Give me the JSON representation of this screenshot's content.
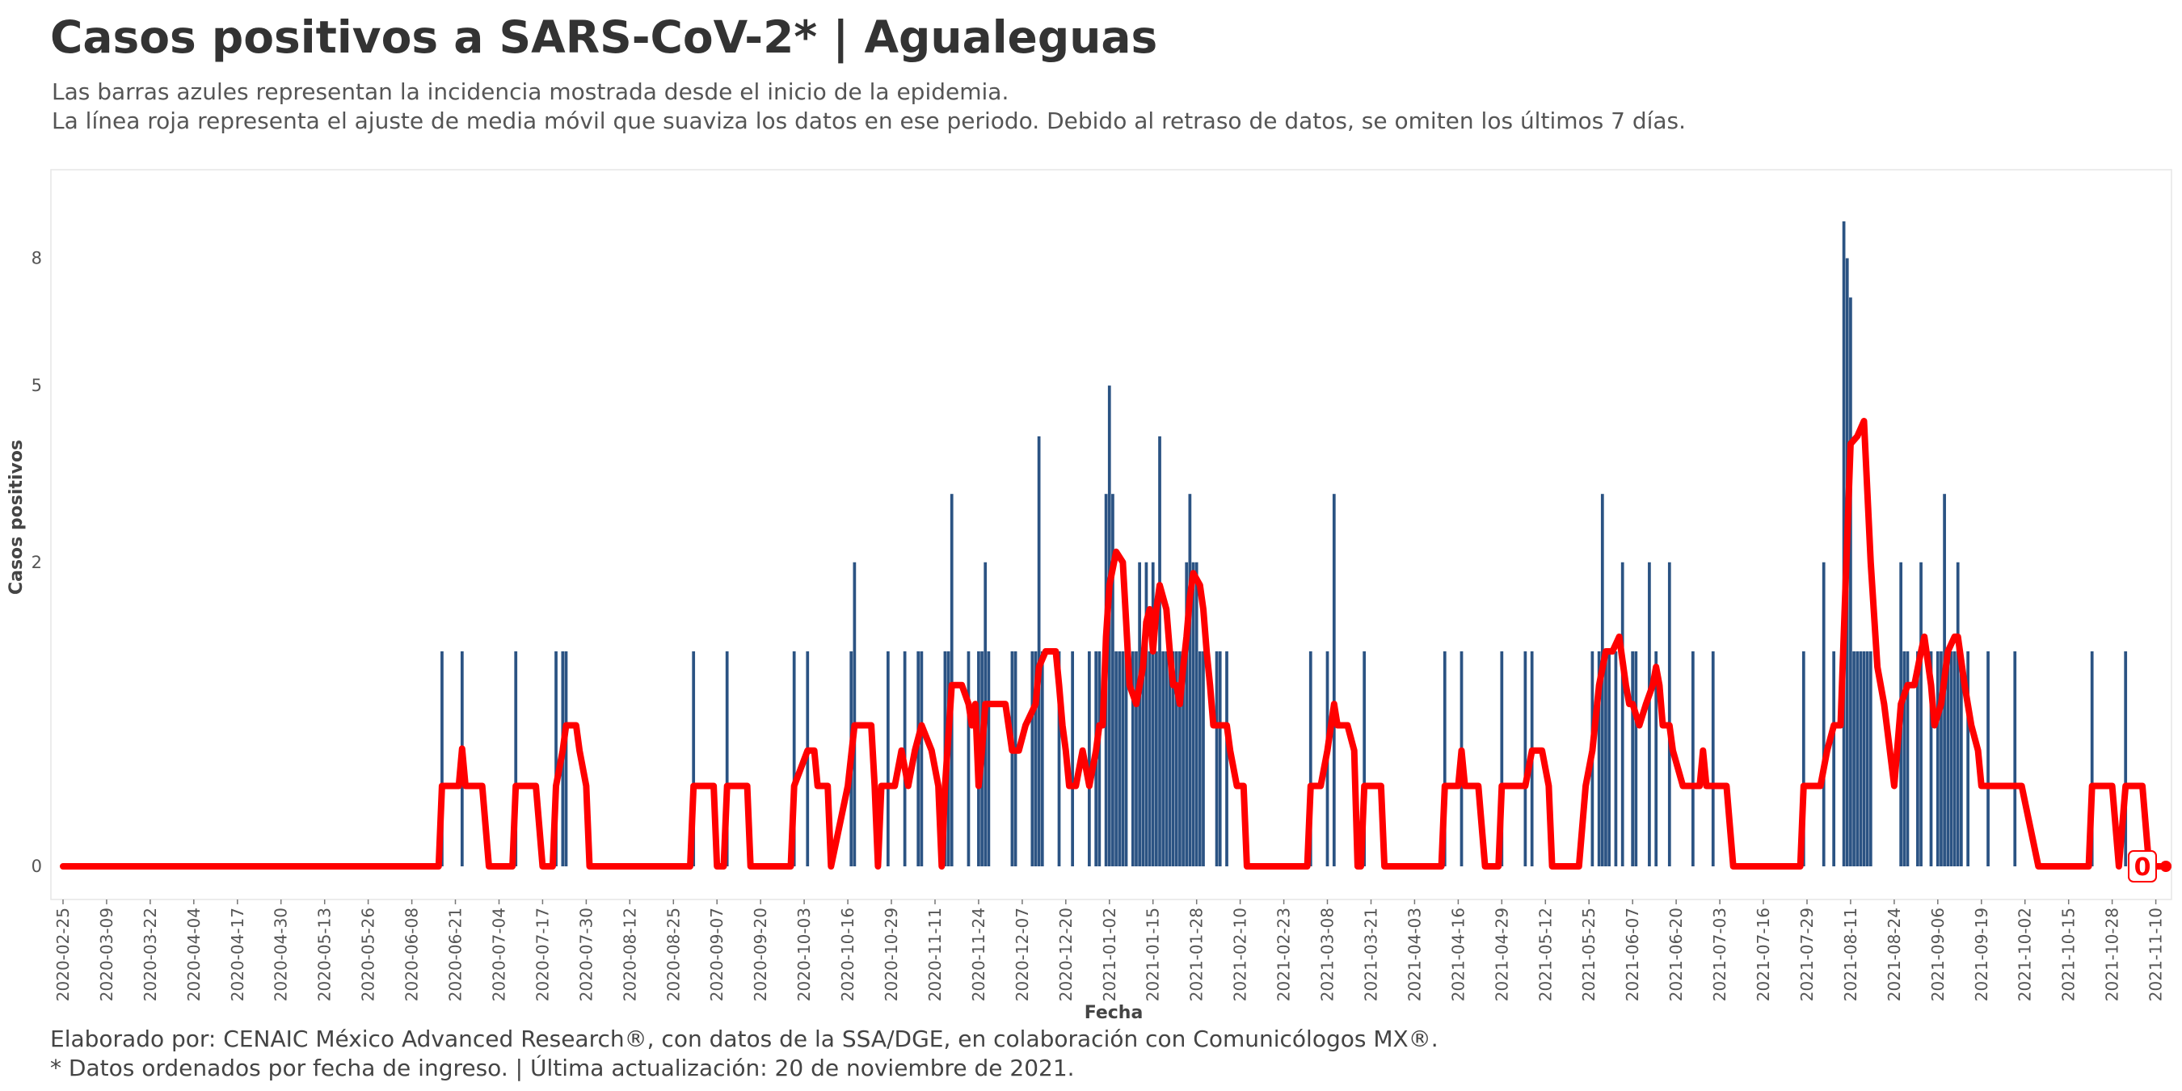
{
  "header": {
    "title": "Casos positivos a SARS-CoV-2* | Agualeguas",
    "subtitle_line1": "Las barras azules representan la incidencia mostrada desde el inicio de la epidemia.",
    "subtitle_line2": "La línea roja representa el ajuste de media móvil que suaviza los datos en ese periodo. Debido al retraso de datos, se omiten los últimos 7 días."
  },
  "footer": {
    "caption_line1": "Elaborado por: CENAIC México Advanced Research®, con datos de la SSA/DGE, en colaboración con Comunicólogos MX®.",
    "caption_line2": "* Datos ordenados por fecha de ingreso. | Última actualización: 20 de noviembre de 2021."
  },
  "chart_data": {
    "type": "bar",
    "title": "Casos positivos a SARS-CoV-2* | Agualeguas",
    "xlabel": "Fecha",
    "ylabel": "Casos positivos",
    "y_scale": "sqrt",
    "ylim": [
      0,
      9.5
    ],
    "y_ticks": [
      0,
      2,
      5,
      8
    ],
    "x_start": "2020-02-25",
    "x_end": "2021-11-13",
    "x_ticks": [
      "2020-02-25",
      "2020-03-09",
      "2020-03-22",
      "2020-04-04",
      "2020-04-17",
      "2020-04-30",
      "2020-05-13",
      "2020-05-26",
      "2020-06-08",
      "2020-06-21",
      "2020-07-04",
      "2020-07-17",
      "2020-07-30",
      "2020-08-12",
      "2020-08-25",
      "2020-09-07",
      "2020-09-20",
      "2020-10-03",
      "2020-10-16",
      "2020-10-29",
      "2020-11-11",
      "2020-11-24",
      "2020-12-07",
      "2020-12-20",
      "2021-01-02",
      "2021-01-15",
      "2021-01-28",
      "2021-02-10",
      "2021-02-23",
      "2021-03-08",
      "2021-03-21",
      "2021-04-03",
      "2021-04-16",
      "2021-04-29",
      "2021-05-12",
      "2021-05-25",
      "2021-06-07",
      "2021-06-20",
      "2021-07-03",
      "2021-07-16",
      "2021-07-29",
      "2021-08-11",
      "2021-08-24",
      "2021-09-06",
      "2021-09-19",
      "2021-10-02",
      "2021-10-15",
      "2021-10-28",
      "2021-11-10"
    ],
    "bar_color": "#2b5383",
    "line_color": "#ff0000",
    "last_value_label": "0",
    "daily_cases": [
      [
        "2020-06-17",
        1
      ],
      [
        "2020-06-23",
        1
      ],
      [
        "2020-07-09",
        1
      ],
      [
        "2020-07-21",
        1
      ],
      [
        "2020-07-23",
        1
      ],
      [
        "2020-07-24",
        1
      ],
      [
        "2020-08-31",
        1
      ],
      [
        "2020-09-10",
        1
      ],
      [
        "2020-09-30",
        1
      ],
      [
        "2020-10-04",
        1
      ],
      [
        "2020-10-17",
        1
      ],
      [
        "2020-10-18",
        2
      ],
      [
        "2020-10-28",
        1
      ],
      [
        "2020-11-02",
        1
      ],
      [
        "2020-11-06",
        1
      ],
      [
        "2020-11-07",
        1
      ],
      [
        "2020-11-14",
        1
      ],
      [
        "2020-11-15",
        1
      ],
      [
        "2020-11-16",
        3
      ],
      [
        "2020-11-21",
        1
      ],
      [
        "2020-11-24",
        1
      ],
      [
        "2020-11-25",
        1
      ],
      [
        "2020-11-26",
        2
      ],
      [
        "2020-11-27",
        1
      ],
      [
        "2020-12-04",
        1
      ],
      [
        "2020-12-05",
        1
      ],
      [
        "2020-12-10",
        1
      ],
      [
        "2020-12-11",
        1
      ],
      [
        "2020-12-12",
        4
      ],
      [
        "2020-12-13",
        1
      ],
      [
        "2020-12-18",
        1
      ],
      [
        "2020-12-22",
        1
      ],
      [
        "2020-12-27",
        1
      ],
      [
        "2020-12-29",
        1
      ],
      [
        "2020-12-30",
        1
      ],
      [
        "2021-01-01",
        3
      ],
      [
        "2021-01-02",
        5
      ],
      [
        "2021-01-03",
        3
      ],
      [
        "2021-01-04",
        1
      ],
      [
        "2021-01-05",
        1
      ],
      [
        "2021-01-06",
        1
      ],
      [
        "2021-01-07",
        1
      ],
      [
        "2021-01-09",
        1
      ],
      [
        "2021-01-10",
        1
      ],
      [
        "2021-01-11",
        2
      ],
      [
        "2021-01-12",
        1
      ],
      [
        "2021-01-13",
        2
      ],
      [
        "2021-01-14",
        1
      ],
      [
        "2021-01-15",
        2
      ],
      [
        "2021-01-16",
        1
      ],
      [
        "2021-01-17",
        4
      ],
      [
        "2021-01-18",
        1
      ],
      [
        "2021-01-19",
        1
      ],
      [
        "2021-01-20",
        1
      ],
      [
        "2021-01-21",
        1
      ],
      [
        "2021-01-22",
        1
      ],
      [
        "2021-01-23",
        1
      ],
      [
        "2021-01-24",
        1
      ],
      [
        "2021-01-25",
        2
      ],
      [
        "2021-01-26",
        3
      ],
      [
        "2021-01-27",
        2
      ],
      [
        "2021-01-28",
        2
      ],
      [
        "2021-01-29",
        1
      ],
      [
        "2021-01-30",
        1
      ],
      [
        "2021-02-03",
        1
      ],
      [
        "2021-02-04",
        1
      ],
      [
        "2021-02-06",
        1
      ],
      [
        "2021-03-03",
        1
      ],
      [
        "2021-03-08",
        1
      ],
      [
        "2021-03-10",
        3
      ],
      [
        "2021-03-19",
        1
      ],
      [
        "2021-04-12",
        1
      ],
      [
        "2021-04-17",
        1
      ],
      [
        "2021-04-29",
        1
      ],
      [
        "2021-05-06",
        1
      ],
      [
        "2021-05-08",
        1
      ],
      [
        "2021-05-26",
        1
      ],
      [
        "2021-05-28",
        1
      ],
      [
        "2021-05-29",
        3
      ],
      [
        "2021-05-30",
        1
      ],
      [
        "2021-05-31",
        1
      ],
      [
        "2021-06-02",
        1
      ],
      [
        "2021-06-04",
        2
      ],
      [
        "2021-06-07",
        1
      ],
      [
        "2021-06-08",
        1
      ],
      [
        "2021-06-12",
        2
      ],
      [
        "2021-06-14",
        1
      ],
      [
        "2021-06-18",
        2
      ],
      [
        "2021-06-25",
        1
      ],
      [
        "2021-07-01",
        1
      ],
      [
        "2021-07-28",
        1
      ],
      [
        "2021-08-03",
        2
      ],
      [
        "2021-08-06",
        1
      ],
      [
        "2021-08-09",
        9
      ],
      [
        "2021-08-10",
        8
      ],
      [
        "2021-08-11",
        7
      ],
      [
        "2021-08-12",
        1
      ],
      [
        "2021-08-13",
        1
      ],
      [
        "2021-08-14",
        1
      ],
      [
        "2021-08-15",
        1
      ],
      [
        "2021-08-16",
        1
      ],
      [
        "2021-08-17",
        1
      ],
      [
        "2021-08-26",
        2
      ],
      [
        "2021-08-27",
        1
      ],
      [
        "2021-08-28",
        1
      ],
      [
        "2021-08-31",
        1
      ],
      [
        "2021-09-01",
        2
      ],
      [
        "2021-09-04",
        1
      ],
      [
        "2021-09-06",
        1
      ],
      [
        "2021-09-07",
        1
      ],
      [
        "2021-09-08",
        3
      ],
      [
        "2021-09-09",
        1
      ],
      [
        "2021-09-10",
        1
      ],
      [
        "2021-09-11",
        1
      ],
      [
        "2021-09-12",
        2
      ],
      [
        "2021-09-13",
        1
      ],
      [
        "2021-09-15",
        1
      ],
      [
        "2021-09-21",
        1
      ],
      [
        "2021-09-29",
        1
      ],
      [
        "2021-10-22",
        1
      ],
      [
        "2021-11-01",
        1
      ]
    ],
    "moving_average": [
      [
        "2020-02-25",
        0
      ],
      [
        "2020-06-16",
        0
      ],
      [
        "2020-06-17",
        0.14
      ],
      [
        "2020-06-22",
        0.14
      ],
      [
        "2020-06-23",
        0.3
      ],
      [
        "2020-06-24",
        0.14
      ],
      [
        "2020-06-29",
        0.14
      ],
      [
        "2020-07-01",
        0
      ],
      [
        "2020-07-08",
        0
      ],
      [
        "2020-07-09",
        0.14
      ],
      [
        "2020-07-15",
        0.14
      ],
      [
        "2020-07-17",
        0
      ],
      [
        "2020-07-20",
        0
      ],
      [
        "2020-07-21",
        0.14
      ],
      [
        "2020-07-23",
        0.29
      ],
      [
        "2020-07-24",
        0.43
      ],
      [
        "2020-07-27",
        0.43
      ],
      [
        "2020-07-28",
        0.29
      ],
      [
        "2020-07-30",
        0.14
      ],
      [
        "2020-07-31",
        0
      ],
      [
        "2020-08-30",
        0
      ],
      [
        "2020-08-31",
        0.14
      ],
      [
        "2020-09-06",
        0.14
      ],
      [
        "2020-09-07",
        0
      ],
      [
        "2020-09-09",
        0
      ],
      [
        "2020-09-10",
        0.14
      ],
      [
        "2020-09-16",
        0.14
      ],
      [
        "2020-09-17",
        0
      ],
      [
        "2020-09-29",
        0
      ],
      [
        "2020-09-30",
        0.14
      ],
      [
        "2020-10-04",
        0.29
      ],
      [
        "2020-10-06",
        0.29
      ],
      [
        "2020-10-07",
        0.14
      ],
      [
        "2020-10-10",
        0.14
      ],
      [
        "2020-10-11",
        0
      ],
      [
        "2020-10-16",
        0.14
      ],
      [
        "2020-10-18",
        0.43
      ],
      [
        "2020-10-23",
        0.43
      ],
      [
        "2020-10-24",
        0.14
      ],
      [
        "2020-10-25",
        0
      ],
      [
        "2020-10-26",
        0.14
      ],
      [
        "2020-10-28",
        0.14
      ],
      [
        "2020-10-30",
        0.14
      ],
      [
        "2020-11-01",
        0.29
      ],
      [
        "2020-11-03",
        0.14
      ],
      [
        "2020-11-05",
        0.29
      ],
      [
        "2020-11-07",
        0.43
      ],
      [
        "2020-11-10",
        0.29
      ],
      [
        "2020-11-12",
        0.14
      ],
      [
        "2020-11-13",
        0
      ],
      [
        "2020-11-14",
        0.14
      ],
      [
        "2020-11-16",
        0.71
      ],
      [
        "2020-11-19",
        0.71
      ],
      [
        "2020-11-21",
        0.57
      ],
      [
        "2020-11-22",
        0.43
      ],
      [
        "2020-11-23",
        0.57
      ],
      [
        "2020-11-24",
        0.14
      ],
      [
        "2020-11-25",
        0.29
      ],
      [
        "2020-11-26",
        0.57
      ],
      [
        "2020-11-29",
        0.57
      ],
      [
        "2020-12-02",
        0.57
      ],
      [
        "2020-12-04",
        0.29
      ],
      [
        "2020-12-06",
        0.29
      ],
      [
        "2020-12-08",
        0.43
      ],
      [
        "2020-12-11",
        0.57
      ],
      [
        "2020-12-12",
        0.86
      ],
      [
        "2020-12-14",
        1
      ],
      [
        "2020-12-17",
        1
      ],
      [
        "2020-12-18",
        0.71
      ],
      [
        "2020-12-19",
        0.43
      ],
      [
        "2020-12-20",
        0.29
      ],
      [
        "2020-12-21",
        0.14
      ],
      [
        "2020-12-23",
        0.14
      ],
      [
        "2020-12-25",
        0.29
      ],
      [
        "2020-12-27",
        0.14
      ],
      [
        "2020-12-29",
        0.29
      ],
      [
        "2020-12-30",
        0.43
      ],
      [
        "2020-12-31",
        0.43
      ],
      [
        "2021-01-01",
        1.14
      ],
      [
        "2021-01-02",
        1.71
      ],
      [
        "2021-01-04",
        2.14
      ],
      [
        "2021-01-06",
        2.0
      ],
      [
        "2021-01-07",
        1.29
      ],
      [
        "2021-01-08",
        0.71
      ],
      [
        "2021-01-10",
        0.57
      ],
      [
        "2021-01-12",
        0.86
      ],
      [
        "2021-01-13",
        1.29
      ],
      [
        "2021-01-14",
        1.43
      ],
      [
        "2021-01-15",
        1.0
      ],
      [
        "2021-01-16",
        1.43
      ],
      [
        "2021-01-17",
        1.71
      ],
      [
        "2021-01-19",
        1.43
      ],
      [
        "2021-01-20",
        1.0
      ],
      [
        "2021-01-21",
        0.71
      ],
      [
        "2021-01-22",
        0.71
      ],
      [
        "2021-01-23",
        0.57
      ],
      [
        "2021-01-24",
        0.86
      ],
      [
        "2021-01-25",
        1.14
      ],
      [
        "2021-01-26",
        1.57
      ],
      [
        "2021-01-27",
        1.86
      ],
      [
        "2021-01-29",
        1.71
      ],
      [
        "2021-01-30",
        1.43
      ],
      [
        "2021-01-31",
        1.0
      ],
      [
        "2021-02-01",
        0.71
      ],
      [
        "2021-02-02",
        0.43
      ],
      [
        "2021-02-06",
        0.43
      ],
      [
        "2021-02-07",
        0.29
      ],
      [
        "2021-02-09",
        0.14
      ],
      [
        "2021-02-11",
        0.14
      ],
      [
        "2021-02-12",
        0
      ],
      [
        "2021-03-02",
        0
      ],
      [
        "2021-03-03",
        0.14
      ],
      [
        "2021-03-06",
        0.14
      ],
      [
        "2021-03-08",
        0.29
      ],
      [
        "2021-03-10",
        0.57
      ],
      [
        "2021-03-11",
        0.43
      ],
      [
        "2021-03-14",
        0.43
      ],
      [
        "2021-03-16",
        0.29
      ],
      [
        "2021-03-17",
        0
      ],
      [
        "2021-03-18",
        0
      ],
      [
        "2021-03-19",
        0.14
      ],
      [
        "2021-03-24",
        0.14
      ],
      [
        "2021-03-25",
        0
      ],
      [
        "2021-04-11",
        0
      ],
      [
        "2021-04-12",
        0.14
      ],
      [
        "2021-04-14",
        0.14
      ],
      [
        "2021-04-16",
        0.14
      ],
      [
        "2021-04-17",
        0.29
      ],
      [
        "2021-04-18",
        0.14
      ],
      [
        "2021-04-22",
        0.14
      ],
      [
        "2021-04-24",
        0
      ],
      [
        "2021-04-28",
        0
      ],
      [
        "2021-04-29",
        0.14
      ],
      [
        "2021-05-04",
        0.14
      ],
      [
        "2021-05-06",
        0.14
      ],
      [
        "2021-05-08",
        0.29
      ],
      [
        "2021-05-11",
        0.29
      ],
      [
        "2021-05-13",
        0.14
      ],
      [
        "2021-05-14",
        0
      ],
      [
        "2021-05-22",
        0
      ],
      [
        "2021-05-24",
        0.14
      ],
      [
        "2021-05-26",
        0.29
      ],
      [
        "2021-05-28",
        0.71
      ],
      [
        "2021-05-30",
        1.0
      ],
      [
        "2021-06-01",
        1.0
      ],
      [
        "2021-06-03",
        1.14
      ],
      [
        "2021-06-05",
        0.71
      ],
      [
        "2021-06-06",
        0.57
      ],
      [
        "2021-06-07",
        0.57
      ],
      [
        "2021-06-09",
        0.43
      ],
      [
        "2021-06-11",
        0.57
      ],
      [
        "2021-06-13",
        0.71
      ],
      [
        "2021-06-14",
        0.86
      ],
      [
        "2021-06-15",
        0.71
      ],
      [
        "2021-06-16",
        0.43
      ],
      [
        "2021-06-18",
        0.43
      ],
      [
        "2021-06-19",
        0.29
      ],
      [
        "2021-06-22",
        0.14
      ],
      [
        "2021-06-27",
        0.14
      ],
      [
        "2021-06-28",
        0.29
      ],
      [
        "2021-06-29",
        0.14
      ],
      [
        "2021-07-05",
        0.14
      ],
      [
        "2021-07-07",
        0
      ],
      [
        "2021-07-27",
        0
      ],
      [
        "2021-07-28",
        0.14
      ],
      [
        "2021-08-02",
        0.14
      ],
      [
        "2021-08-04",
        0.29
      ],
      [
        "2021-08-06",
        0.43
      ],
      [
        "2021-08-08",
        0.43
      ],
      [
        "2021-08-11",
        3.86
      ],
      [
        "2021-08-13",
        4.0
      ],
      [
        "2021-08-15",
        4.29
      ],
      [
        "2021-08-17",
        2.0
      ],
      [
        "2021-08-19",
        0.86
      ],
      [
        "2021-08-21",
        0.57
      ],
      [
        "2021-08-24",
        0.14
      ],
      [
        "2021-08-26",
        0.57
      ],
      [
        "2021-08-28",
        0.71
      ],
      [
        "2021-08-30",
        0.71
      ],
      [
        "2021-09-01",
        1.0
      ],
      [
        "2021-09-02",
        1.14
      ],
      [
        "2021-09-04",
        0.71
      ],
      [
        "2021-09-05",
        0.43
      ],
      [
        "2021-09-07",
        0.57
      ],
      [
        "2021-09-09",
        1.0
      ],
      [
        "2021-09-11",
        1.14
      ],
      [
        "2021-09-12",
        1.14
      ],
      [
        "2021-09-14",
        0.71
      ],
      [
        "2021-09-16",
        0.43
      ],
      [
        "2021-09-18",
        0.29
      ],
      [
        "2021-09-19",
        0.14
      ],
      [
        "2021-09-27",
        0.14
      ],
      [
        "2021-10-01",
        0.14
      ],
      [
        "2021-10-06",
        0
      ],
      [
        "2021-10-21",
        0
      ],
      [
        "2021-10-22",
        0.14
      ],
      [
        "2021-10-28",
        0.14
      ],
      [
        "2021-10-30",
        0
      ],
      [
        "2021-11-01",
        0.14
      ],
      [
        "2021-11-06",
        0.14
      ],
      [
        "2021-11-08",
        0
      ],
      [
        "2021-11-13",
        0
      ]
    ]
  }
}
